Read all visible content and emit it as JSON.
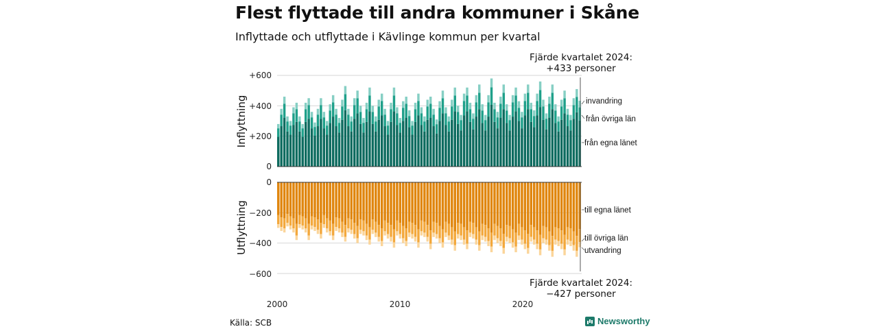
{
  "title": "Flest flyttade till andra kommuner i Skåne",
  "subtitle": "Inflyttade och utflyttade i Kävlinge kommun per kvartal",
  "source": "Källa: SCB",
  "brand": "Newsworthy",
  "colors": {
    "in_own": "#0d6b5f",
    "in_other": "#1fa08a",
    "in_immig": "#86cfc4",
    "out_own": "#e0860e",
    "out_other": "#f3a83c",
    "out_emig": "#fbd59a"
  },
  "chart_data": {
    "type": "bar",
    "stacked": true,
    "x_range": [
      2000,
      2024.75
    ],
    "x_ticks": [
      "2000",
      "2010",
      "2020"
    ],
    "top_panel": {
      "ylabel": "Inflyttning",
      "ylim": [
        0,
        600
      ],
      "y_ticks": [
        "0",
        "+200",
        "+400",
        "+600"
      ],
      "series_labels": [
        "från egna länet",
        "från övriga län",
        "invandring"
      ],
      "annotation": [
        "Fjärde kvartalet 2024:",
        "+433 personer"
      ]
    },
    "bottom_panel": {
      "ylabel": "Utflyttning",
      "ylim": [
        -600,
        0
      ],
      "y_ticks": [
        "0",
        "−200",
        "−400",
        "−600"
      ],
      "series_labels": [
        "till egna länet",
        "till övriga län",
        "utvandring"
      ],
      "annotation": [
        "Fjärde kvartalet 2024:",
        "−427 personer"
      ]
    },
    "quarters_start": "2000 Q1",
    "quarters_end": "2024 Q4",
    "inflow_totals": [
      280,
      380,
      460,
      330,
      300,
      390,
      420,
      330,
      280,
      420,
      450,
      360,
      290,
      380,
      450,
      360,
      300,
      410,
      470,
      380,
      320,
      440,
      530,
      380,
      330,
      450,
      500,
      400,
      320,
      420,
      520,
      400,
      330,
      440,
      480,
      380,
      300,
      420,
      520,
      390,
      320,
      430,
      460,
      370,
      300,
      420,
      480,
      390,
      330,
      440,
      460,
      380,
      310,
      430,
      500,
      390,
      330,
      440,
      520,
      400,
      340,
      480,
      520,
      420,
      350,
      470,
      540,
      410,
      340,
      470,
      580,
      420,
      360,
      460,
      540,
      410,
      340,
      470,
      520,
      430,
      360,
      480,
      540,
      420,
      370,
      480,
      560,
      440,
      350,
      460,
      540,
      410,
      330,
      440,
      500,
      380,
      340,
      450,
      510,
      433
    ],
    "inflow_own_share": 0.7,
    "inflow_other_share": 0.2,
    "outflow_totals": [
      300,
      320,
      330,
      290,
      310,
      330,
      380,
      300,
      310,
      330,
      380,
      310,
      320,
      340,
      370,
      300,
      330,
      350,
      380,
      320,
      330,
      360,
      390,
      330,
      340,
      370,
      400,
      340,
      350,
      380,
      410,
      340,
      360,
      390,
      420,
      350,
      370,
      390,
      430,
      350,
      370,
      400,
      420,
      360,
      370,
      390,
      430,
      350,
      360,
      390,
      440,
      360,
      370,
      400,
      430,
      360,
      380,
      410,
      450,
      370,
      380,
      410,
      440,
      360,
      370,
      410,
      450,
      380,
      390,
      420,
      460,
      380,
      400,
      420,
      470,
      390,
      400,
      430,
      460,
      380,
      410,
      440,
      470,
      390,
      410,
      440,
      480,
      400,
      410,
      450,
      490,
      410,
      420,
      440,
      480,
      410,
      420,
      450,
      490,
      427
    ],
    "outflow_own_share": 0.72,
    "outflow_other_share": 0.2
  }
}
